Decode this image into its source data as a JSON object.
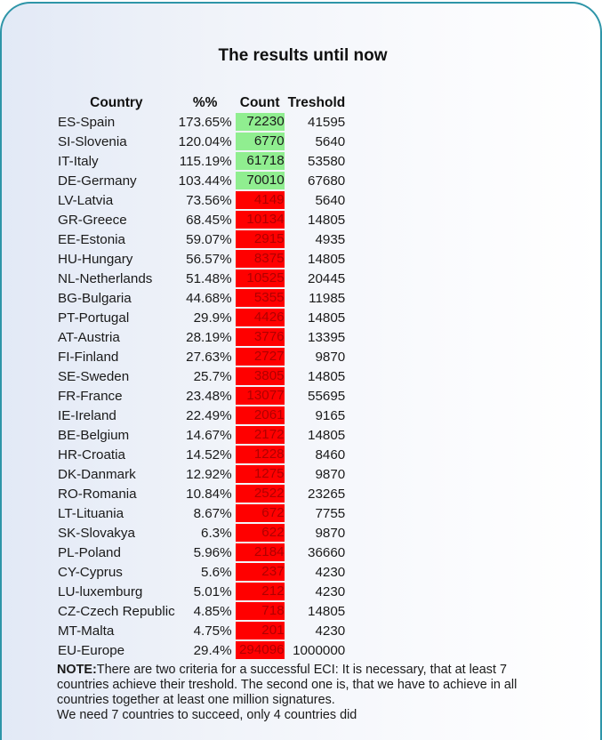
{
  "title": "The results until now",
  "headers": {
    "country": "Country",
    "percent": "%%",
    "count": "Count",
    "treshold": "Treshold"
  },
  "rows": [
    {
      "country": "ES-Spain",
      "percent": "173.65%",
      "count": "72230",
      "treshold": "41595",
      "status": "success"
    },
    {
      "country": "SI-Slovenia",
      "percent": "120.04%",
      "count": "6770",
      "treshold": "5640",
      "status": "success"
    },
    {
      "country": "IT-Italy",
      "percent": "115.19%",
      "count": "61718",
      "treshold": "53580",
      "status": "success"
    },
    {
      "country": "DE-Germany",
      "percent": "103.44%",
      "count": "70010",
      "treshold": "67680",
      "status": "success"
    },
    {
      "country": "LV-Latvia",
      "percent": "73.56%",
      "count": "4149",
      "treshold": "5640",
      "status": "fail"
    },
    {
      "country": "GR-Greece",
      "percent": "68.45%",
      "count": "10134",
      "treshold": "14805",
      "status": "fail"
    },
    {
      "country": "EE-Estonia",
      "percent": "59.07%",
      "count": "2915",
      "treshold": "4935",
      "status": "fail"
    },
    {
      "country": "HU-Hungary",
      "percent": "56.57%",
      "count": "8375",
      "treshold": "14805",
      "status": "fail"
    },
    {
      "country": "NL-Netherlands",
      "percent": "51.48%",
      "count": "10525",
      "treshold": "20445",
      "status": "fail"
    },
    {
      "country": "BG-Bulgaria",
      "percent": "44.68%",
      "count": "5355",
      "treshold": "11985",
      "status": "fail"
    },
    {
      "country": "PT-Portugal",
      "percent": "29.9%",
      "count": "4426",
      "treshold": "14805",
      "status": "fail"
    },
    {
      "country": "AT-Austria",
      "percent": "28.19%",
      "count": "3776",
      "treshold": "13395",
      "status": "fail"
    },
    {
      "country": "FI-Finland",
      "percent": "27.63%",
      "count": "2727",
      "treshold": "9870",
      "status": "fail"
    },
    {
      "country": "SE-Sweden",
      "percent": "25.7%",
      "count": "3805",
      "treshold": "14805",
      "status": "fail"
    },
    {
      "country": "FR-France",
      "percent": "23.48%",
      "count": "13077",
      "treshold": "55695",
      "status": "fail"
    },
    {
      "country": "IE-Ireland",
      "percent": "22.49%",
      "count": "2061",
      "treshold": "9165",
      "status": "fail"
    },
    {
      "country": "BE-Belgium",
      "percent": "14.67%",
      "count": "2172",
      "treshold": "14805",
      "status": "fail"
    },
    {
      "country": "HR-Croatia",
      "percent": "14.52%",
      "count": "1228",
      "treshold": "8460",
      "status": "fail"
    },
    {
      "country": "DK-Danmark",
      "percent": "12.92%",
      "count": "1275",
      "treshold": "9870",
      "status": "fail"
    },
    {
      "country": "RO-Romania",
      "percent": "10.84%",
      "count": "2522",
      "treshold": "23265",
      "status": "fail"
    },
    {
      "country": "LT-Lituania",
      "percent": "8.67%",
      "count": "672",
      "treshold": "7755",
      "status": "fail"
    },
    {
      "country": "SK-Slovakya",
      "percent": "6.3%",
      "count": "622",
      "treshold": "9870",
      "status": "fail"
    },
    {
      "country": "PL-Poland",
      "percent": "5.96%",
      "count": "2184",
      "treshold": "36660",
      "status": "fail"
    },
    {
      "country": "CY-Cyprus",
      "percent": "5.6%",
      "count": "237",
      "treshold": "4230",
      "status": "fail"
    },
    {
      "country": "LU-luxemburg",
      "percent": "5.01%",
      "count": "212",
      "treshold": "4230",
      "status": "fail"
    },
    {
      "country": "CZ-Czech Republic",
      "percent": "4.85%",
      "count": "718",
      "treshold": "14805",
      "status": "fail"
    },
    {
      "country": "MT-Malta",
      "percent": "4.75%",
      "count": "201",
      "treshold": "4230",
      "status": "fail"
    },
    {
      "country": "EU-Europe",
      "percent": "29.4%",
      "count": "294096",
      "treshold": "1000000",
      "status": "fail"
    }
  ],
  "colors": {
    "success": "#90ee90",
    "fail": "#ff0000",
    "border": "#2e95a8"
  },
  "note": {
    "label": "NOTE:",
    "text": "There are two criteria for a successful ECI: It is necessary, that at least 7 countries achieve their treshold. The second one is, that we have to achieve in all countries together at least one million signatures.",
    "summary": "We need 7 countries to succeed, only 4 countries did"
  }
}
